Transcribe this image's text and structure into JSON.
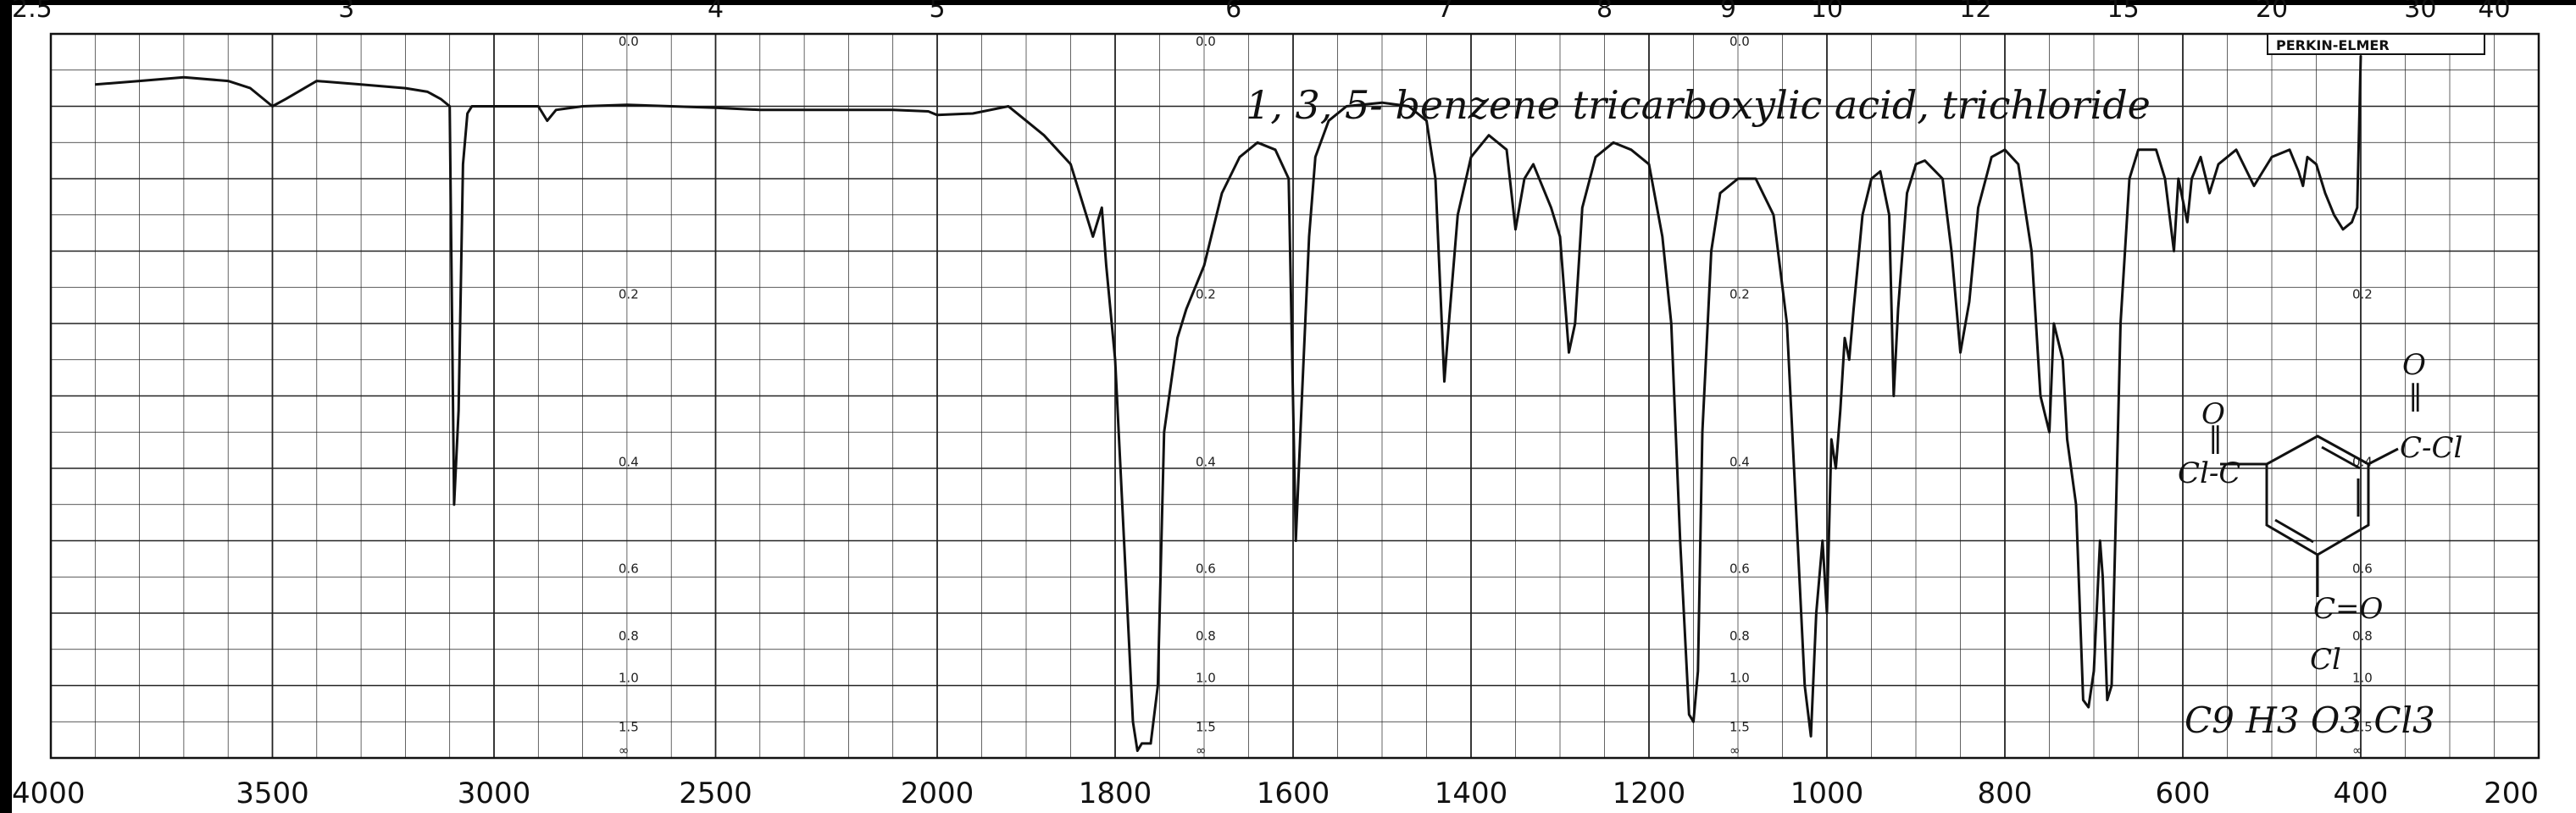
{
  "chart_data": {
    "type": "line",
    "title": "1, 3, 5- benzene tricarboxylic acid, trichloride",
    "formula": "C9 H3 O3 Cl3",
    "brand": "PERKIN-ELMER",
    "xlabel": "",
    "ylabel": "",
    "x_ticks": [
      "4000",
      "3500",
      "3000",
      "2500",
      "2000",
      "1800",
      "1600",
      "1400",
      "1200",
      "1000",
      "800",
      "600",
      "400",
      "200"
    ],
    "top_ticks": [
      {
        "label": "2.5",
        "pos": 4000
      },
      {
        "label": "3",
        "pos": 3333
      },
      {
        "label": "4",
        "pos": 2500
      },
      {
        "label": "5",
        "pos": 2000
      },
      {
        "label": "6",
        "pos": 1667
      },
      {
        "label": "7",
        "pos": 1429
      },
      {
        "label": "8",
        "pos": 1250
      },
      {
        "label": "9",
        "pos": 1111
      },
      {
        "label": "10",
        "pos": 1000
      },
      {
        "label": "12",
        "pos": 833
      },
      {
        "label": "15",
        "pos": 667
      },
      {
        "label": "20",
        "pos": 500
      },
      {
        "label": "30",
        "pos": 333
      },
      {
        "label": "40",
        "pos": 250
      }
    ],
    "absorbance_labels": [
      "0.0",
      "0.2",
      "0.4",
      "0.6",
      "0.8",
      "1.0",
      "1.5",
      "∞"
    ],
    "absorbance_columns": [
      2700,
      1700,
      1100,
      400
    ],
    "series": [
      {
        "values": [
          [
            3900,
            0.93
          ],
          [
            3800,
            0.935
          ],
          [
            3700,
            0.94
          ],
          [
            3600,
            0.935
          ],
          [
            3550,
            0.925
          ],
          [
            3500,
            0.9
          ],
          [
            3470,
            0.91
          ],
          [
            3400,
            0.935
          ],
          [
            3300,
            0.93
          ],
          [
            3200,
            0.925
          ],
          [
            3150,
            0.92
          ],
          [
            3120,
            0.91
          ],
          [
            3100,
            0.9
          ],
          [
            3090,
            0.35
          ],
          [
            3080,
            0.48
          ],
          [
            3070,
            0.82
          ],
          [
            3060,
            0.89
          ],
          [
            3050,
            0.9
          ],
          [
            3000,
            0.9
          ],
          [
            2900,
            0.9
          ],
          [
            2880,
            0.88
          ],
          [
            2860,
            0.895
          ],
          [
            2800,
            0.9
          ],
          [
            2700,
            0.902
          ],
          [
            2600,
            0.9
          ],
          [
            2500,
            0.898
          ],
          [
            2400,
            0.895
          ],
          [
            2300,
            0.895
          ],
          [
            2100,
            0.895
          ],
          [
            2020,
            0.893
          ],
          [
            2000,
            0.888
          ],
          [
            1960,
            0.89
          ],
          [
            1920,
            0.9
          ],
          [
            1900,
            0.88
          ],
          [
            1880,
            0.86
          ],
          [
            1850,
            0.82
          ],
          [
            1825,
            0.72
          ],
          [
            1815,
            0.76
          ],
          [
            1810,
            0.68
          ],
          [
            1800,
            0.55
          ],
          [
            1790,
            0.3
          ],
          [
            1780,
            0.05
          ],
          [
            1775,
            0.01
          ],
          [
            1770,
            0.02
          ],
          [
            1760,
            0.02
          ],
          [
            1752,
            0.1
          ],
          [
            1745,
            0.45
          ],
          [
            1730,
            0.58
          ],
          [
            1720,
            0.62
          ],
          [
            1700,
            0.68
          ],
          [
            1680,
            0.78
          ],
          [
            1660,
            0.83
          ],
          [
            1640,
            0.85
          ],
          [
            1620,
            0.84
          ],
          [
            1605,
            0.8
          ],
          [
            1597,
            0.3
          ],
          [
            1590,
            0.5
          ],
          [
            1582,
            0.72
          ],
          [
            1575,
            0.83
          ],
          [
            1560,
            0.88
          ],
          [
            1540,
            0.9
          ],
          [
            1500,
            0.905
          ],
          [
            1470,
            0.9
          ],
          [
            1450,
            0.88
          ],
          [
            1440,
            0.8
          ],
          [
            1430,
            0.52
          ],
          [
            1425,
            0.6
          ],
          [
            1415,
            0.75
          ],
          [
            1400,
            0.83
          ],
          [
            1380,
            0.86
          ],
          [
            1360,
            0.84
          ],
          [
            1350,
            0.73
          ],
          [
            1340,
            0.8
          ],
          [
            1330,
            0.82
          ],
          [
            1310,
            0.76
          ],
          [
            1300,
            0.72
          ],
          [
            1290,
            0.56
          ],
          [
            1283,
            0.6
          ],
          [
            1275,
            0.76
          ],
          [
            1260,
            0.83
          ],
          [
            1240,
            0.85
          ],
          [
            1220,
            0.84
          ],
          [
            1200,
            0.82
          ],
          [
            1185,
            0.72
          ],
          [
            1175,
            0.6
          ],
          [
            1165,
            0.3
          ],
          [
            1155,
            0.06
          ],
          [
            1150,
            0.05
          ],
          [
            1145,
            0.12
          ],
          [
            1140,
            0.45
          ],
          [
            1130,
            0.7
          ],
          [
            1120,
            0.78
          ],
          [
            1100,
            0.8
          ],
          [
            1080,
            0.8
          ],
          [
            1060,
            0.75
          ],
          [
            1045,
            0.6
          ],
          [
            1035,
            0.35
          ],
          [
            1025,
            0.1
          ],
          [
            1018,
            0.03
          ],
          [
            1012,
            0.2
          ],
          [
            1005,
            0.3
          ],
          [
            1000,
            0.2
          ],
          [
            995,
            0.44
          ],
          [
            990,
            0.4
          ],
          [
            985,
            0.48
          ],
          [
            980,
            0.58
          ],
          [
            975,
            0.55
          ],
          [
            970,
            0.62
          ],
          [
            960,
            0.75
          ],
          [
            950,
            0.8
          ],
          [
            940,
            0.81
          ],
          [
            930,
            0.75
          ],
          [
            925,
            0.5
          ],
          [
            920,
            0.62
          ],
          [
            910,
            0.78
          ],
          [
            900,
            0.82
          ],
          [
            890,
            0.825
          ],
          [
            870,
            0.8
          ],
          [
            860,
            0.7
          ],
          [
            850,
            0.56
          ],
          [
            840,
            0.63
          ],
          [
            830,
            0.76
          ],
          [
            815,
            0.83
          ],
          [
            800,
            0.84
          ],
          [
            785,
            0.82
          ],
          [
            770,
            0.7
          ],
          [
            760,
            0.5
          ],
          [
            750,
            0.45
          ],
          [
            745,
            0.6
          ],
          [
            735,
            0.55
          ],
          [
            730,
            0.44
          ],
          [
            720,
            0.35
          ],
          [
            712,
            0.08
          ],
          [
            706,
            0.07
          ],
          [
            700,
            0.12
          ],
          [
            693,
            0.3
          ],
          [
            690,
            0.25
          ],
          [
            685,
            0.08
          ],
          [
            680,
            0.1
          ],
          [
            675,
            0.35
          ],
          [
            670,
            0.6
          ],
          [
            660,
            0.8
          ],
          [
            650,
            0.84
          ],
          [
            630,
            0.84
          ],
          [
            620,
            0.8
          ],
          [
            610,
            0.7
          ],
          [
            605,
            0.8
          ],
          [
            595,
            0.74
          ],
          [
            590,
            0.8
          ],
          [
            580,
            0.83
          ],
          [
            570,
            0.78
          ],
          [
            560,
            0.82
          ],
          [
            540,
            0.84
          ],
          [
            520,
            0.79
          ],
          [
            510,
            0.81
          ],
          [
            500,
            0.83
          ],
          [
            480,
            0.84
          ],
          [
            470,
            0.81
          ],
          [
            465,
            0.79
          ],
          [
            460,
            0.83
          ],
          [
            450,
            0.82
          ],
          [
            440,
            0.78
          ],
          [
            430,
            0.75
          ],
          [
            420,
            0.73
          ],
          [
            410,
            0.74
          ],
          [
            404,
            0.76
          ],
          [
            400,
            0.97
          ]
        ]
      }
    ],
    "xlim": [
      4000,
      200
    ],
    "ylim": [
      0,
      1
    ],
    "grid": true
  }
}
